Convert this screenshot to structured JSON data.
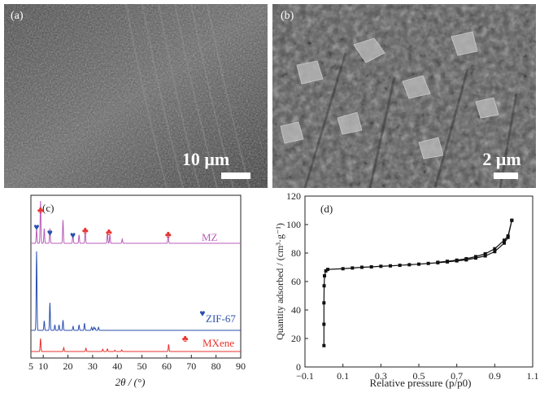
{
  "panels": {
    "a": {
      "label": "(a)",
      "scale_bar": "10 μm"
    },
    "b": {
      "label": "(b)",
      "scale_bar": "2 μm"
    },
    "c": {
      "label": "(c)"
    },
    "d": {
      "label": "(d)"
    }
  },
  "chart_data": [
    {
      "type": "line",
      "panel": "(c)",
      "xlabel": "2θ / (°)",
      "ylabel": "",
      "xlim": [
        5,
        90
      ],
      "xticks": [
        5,
        10,
        20,
        30,
        40,
        50,
        60,
        70,
        80,
        90
      ],
      "grid": false,
      "colors": {
        "MZ": "#b85db8",
        "ZIF-67": "#2b4fae",
        "MXene": "#e8322d"
      },
      "series": [
        {
          "name": "MZ",
          "peaks": [
            {
              "x": 7.3,
              "h": 0.35
            },
            {
              "x": 8.9,
              "h": 1.0
            },
            {
              "x": 10.4,
              "h": 0.35
            },
            {
              "x": 12.7,
              "h": 0.35
            },
            {
              "x": 18.0,
              "h": 0.55
            },
            {
              "x": 22.0,
              "h": 0.2
            },
            {
              "x": 24.5,
              "h": 0.2
            },
            {
              "x": 27.0,
              "h": 0.3
            },
            {
              "x": 36.0,
              "h": 0.25
            },
            {
              "x": 37.0,
              "h": 0.2
            },
            {
              "x": 42.0,
              "h": 0.1
            },
            {
              "x": 60.6,
              "h": 0.2
            }
          ]
        },
        {
          "name": "ZIF-67",
          "peaks": [
            {
              "x": 7.3,
              "h": 1.0
            },
            {
              "x": 10.4,
              "h": 0.12
            },
            {
              "x": 12.7,
              "h": 0.35
            },
            {
              "x": 14.7,
              "h": 0.07
            },
            {
              "x": 16.4,
              "h": 0.07
            },
            {
              "x": 18.0,
              "h": 0.13
            },
            {
              "x": 22.1,
              "h": 0.05
            },
            {
              "x": 24.5,
              "h": 0.07
            },
            {
              "x": 26.7,
              "h": 0.09
            },
            {
              "x": 29.6,
              "h": 0.04
            },
            {
              "x": 30.5,
              "h": 0.04
            },
            {
              "x": 31.0,
              "h": 0.03
            },
            {
              "x": 32.4,
              "h": 0.04
            }
          ]
        },
        {
          "name": "MXene",
          "peaks": [
            {
              "x": 8.9,
              "h": 1.0
            },
            {
              "x": 18.3,
              "h": 0.3
            },
            {
              "x": 27.3,
              "h": 0.25
            },
            {
              "x": 34.1,
              "h": 0.18
            },
            {
              "x": 36.0,
              "h": 0.2
            },
            {
              "x": 39.0,
              "h": 0.1
            },
            {
              "x": 41.8,
              "h": 0.12
            },
            {
              "x": 60.8,
              "h": 0.55
            }
          ]
        }
      ],
      "legend": {
        "MZ": "MZ",
        "ZIF-67": "ZIF-67",
        "MXene": "MXene"
      },
      "markers": {
        "heart": [
          {
            "series": "MZ",
            "x": 7.3
          },
          {
            "series": "MZ",
            "x": 12.7
          },
          {
            "series": "MZ",
            "x": 22.0
          },
          {
            "series": "ZIF-67",
            "x": 74.5
          }
        ],
        "club": [
          {
            "series": "MZ",
            "x": 8.9
          },
          {
            "series": "MZ",
            "x": 27.0
          },
          {
            "series": "MZ",
            "x": 36.6
          },
          {
            "series": "MZ",
            "x": 60.6
          },
          {
            "series": "MXene",
            "x": 67.5
          }
        ]
      }
    },
    {
      "type": "line",
      "panel": "(d)",
      "xlabel": "Relative pressure (p/p0)",
      "ylabel": "Quantity adsorbed / (cm³·g⁻¹)",
      "xlim": [
        -0.1,
        1.1
      ],
      "ylim": [
        0,
        120
      ],
      "xticks": [
        -0.1,
        0.1,
        0.3,
        0.5,
        0.7,
        0.9,
        1.1
      ],
      "yticks": [
        0,
        20,
        40,
        60,
        80,
        100,
        120
      ],
      "grid": false,
      "color": "#111111",
      "series": [
        {
          "name": "",
          "x": [
            0.0,
            0.0,
            0.0,
            0.001,
            0.003,
            0.01,
            0.02,
            0.1,
            0.15,
            0.2,
            0.25,
            0.3,
            0.35,
            0.4,
            0.45,
            0.5,
            0.55,
            0.6,
            0.65,
            0.7,
            0.75,
            0.8,
            0.85,
            0.9,
            0.95,
            0.97,
            0.99
          ],
          "y": [
            15,
            30,
            45,
            57,
            64,
            67.5,
            68.5,
            69,
            69.5,
            70,
            70.3,
            70.7,
            71,
            71.4,
            71.8,
            72.2,
            72.7,
            73.2,
            73.8,
            74.5,
            75.2,
            76.5,
            78,
            81,
            87,
            91,
            103
          ]
        },
        {
          "name": "",
          "x": [
            0.99,
            0.97,
            0.95,
            0.9,
            0.85,
            0.8,
            0.75,
            0.7,
            0.65,
            0.6
          ],
          "y": [
            103,
            92,
            89,
            83,
            79.5,
            77.5,
            76,
            75,
            74.2,
            73.5
          ]
        }
      ]
    }
  ]
}
